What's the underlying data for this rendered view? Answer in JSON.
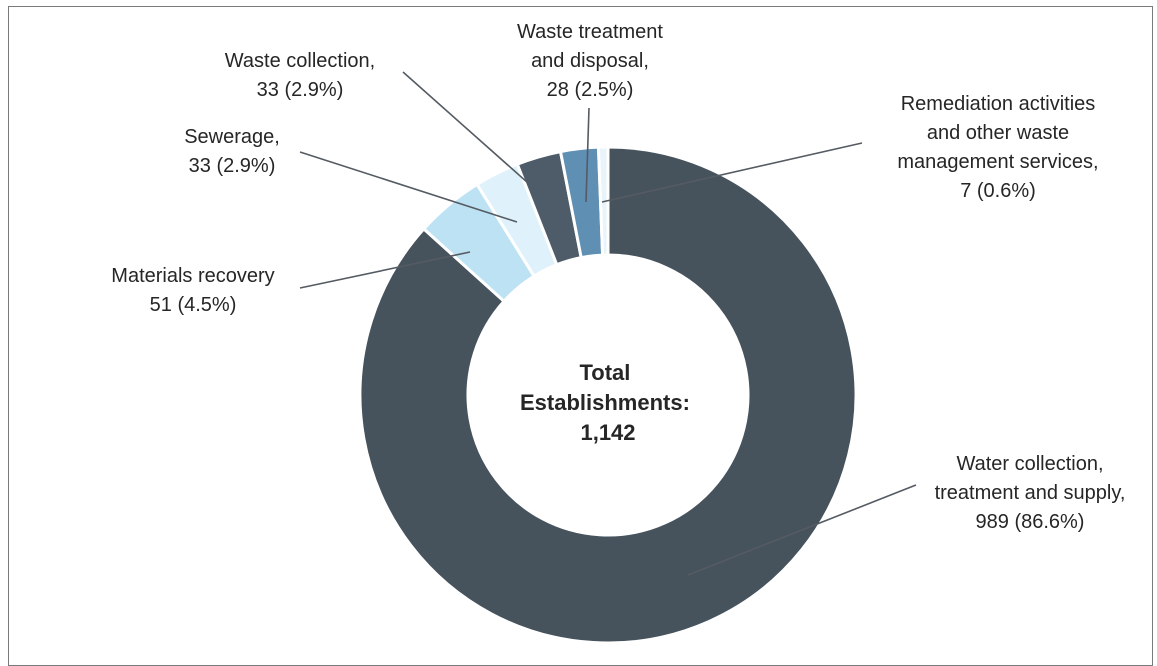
{
  "chart_data": {
    "type": "pie",
    "donut": true,
    "center_text": [
      "Total",
      "Establishments:",
      "1,142"
    ],
    "slices": [
      {
        "label_lines": [
          "Water collection,",
          "treatment and supply,",
          "989 (86.6%)"
        ],
        "value": 989,
        "percent": "86.6%",
        "color": "#46525c"
      },
      {
        "label_lines": [
          "Materials recovery",
          "51 (4.5%)"
        ],
        "value": 51,
        "percent": "4.5%",
        "color": "#bde2f3"
      },
      {
        "label_lines": [
          "Sewerage,",
          "33 (2.9%)"
        ],
        "value": 33,
        "percent": "2.9%",
        "color": "#dff1fb"
      },
      {
        "label_lines": [
          "Waste collection,",
          "33 (2.9%)"
        ],
        "value": 33,
        "percent": "2.9%",
        "color": "#4e5c69"
      },
      {
        "label_lines": [
          "Waste treatment",
          "and disposal,",
          "28 (2.5%)"
        ],
        "value": 28,
        "percent": "2.5%",
        "color": "#5f8fb3"
      },
      {
        "label_lines": [
          "Remediation activities",
          "and other waste",
          "management services,",
          "7 (0.6%)"
        ],
        "value": 7,
        "percent": "0.6%",
        "color": "#e8f3fa"
      }
    ]
  }
}
